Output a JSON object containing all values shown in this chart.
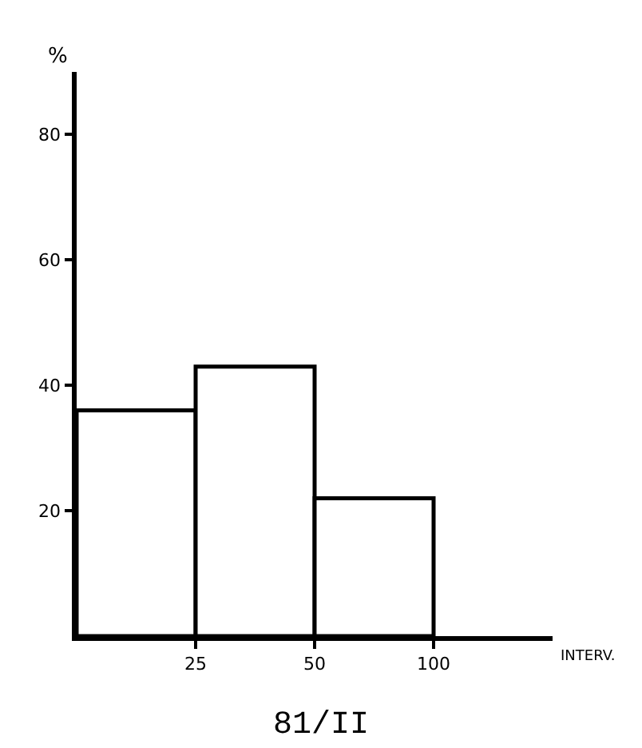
{
  "chart_data": {
    "type": "histogram",
    "title": "81/II",
    "xlabel": "INTERV.",
    "ylabel": "%",
    "bins": [
      12.5,
      25,
      50,
      100
    ],
    "values": [
      36,
      43,
      22
    ],
    "color": "#ffffff",
    "log": "x",
    "xlim": [
      12.5,
      200
    ],
    "xticks": [
      25,
      50,
      100
    ],
    "ylim": [
      0,
      90
    ],
    "yticks": [
      20,
      40,
      60,
      80
    ]
  }
}
